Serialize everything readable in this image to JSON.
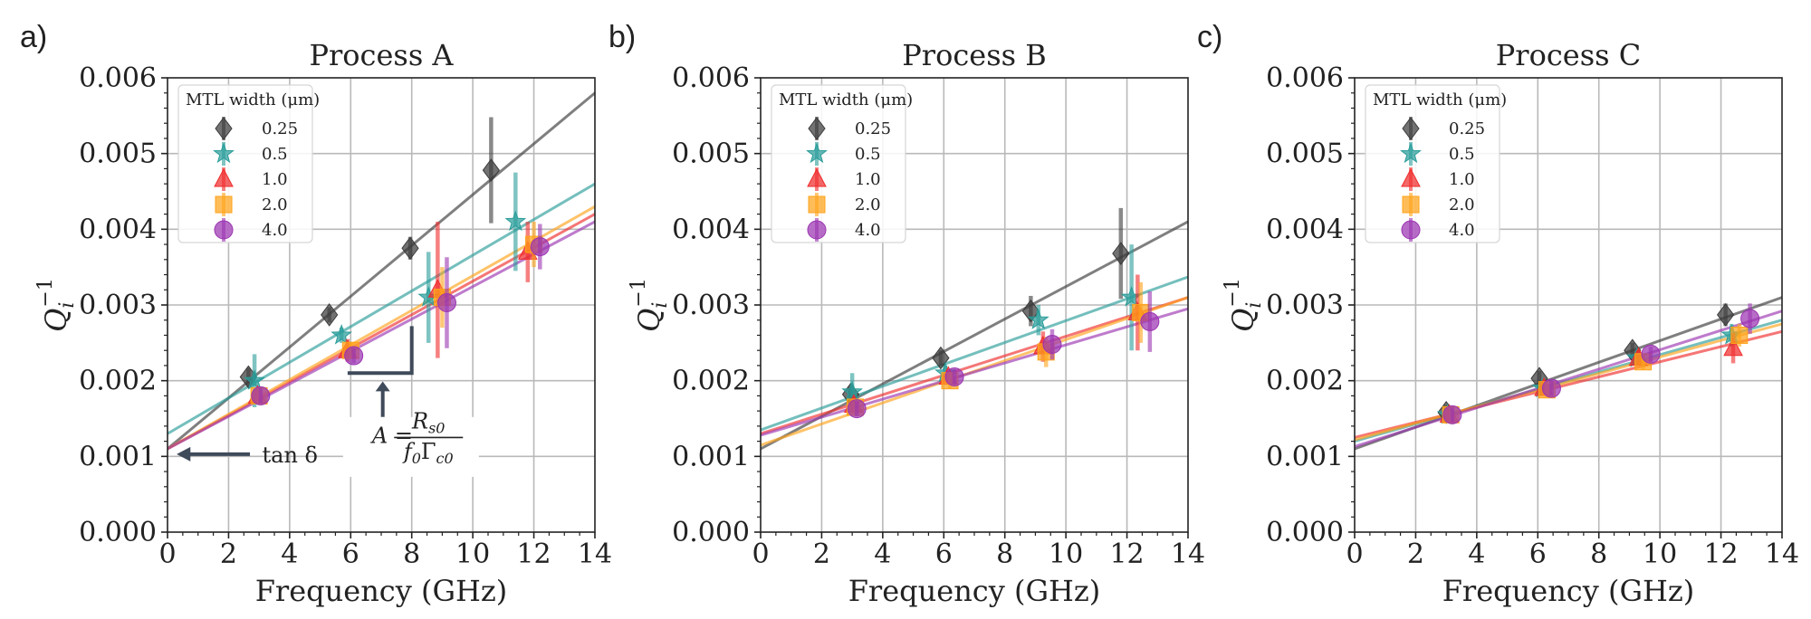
{
  "chart_data": [
    {
      "type": "scatter",
      "panel_label": "a)",
      "title": "Process A",
      "xlabel": "Frequency (GHz)",
      "ylabel": "Q_i^-1",
      "xlim": [
        0,
        14
      ],
      "ylim": [
        0,
        0.006
      ],
      "xticks": [
        "0",
        "2",
        "4",
        "6",
        "8",
        "10",
        "12",
        "14"
      ],
      "yticks": [
        "0.000",
        "0.001",
        "0.002",
        "0.003",
        "0.004",
        "0.005",
        "0.006"
      ],
      "grid": true,
      "legend_title": "MTL width (μm)",
      "legend_position": "top-left",
      "series": [
        {
          "name": "0.25",
          "color": "#3b3b3b",
          "marker": "diamond",
          "x": [
            2.65,
            5.3,
            7.95,
            10.6
          ],
          "y": [
            0.00205,
            0.00287,
            0.00375,
            0.00478
          ],
          "yerr": [
            0.00012,
            0.0001,
            0.00015,
            0.0007
          ],
          "fit": [
            0.0011,
            0.0058
          ]
        },
        {
          "name": "0.5",
          "color": "#2a9d9a",
          "marker": "star",
          "x": [
            2.85,
            5.7,
            8.55,
            11.4
          ],
          "y": [
            0.002,
            0.0026,
            0.0031,
            0.0041
          ],
          "yerr": [
            0.00035,
            0.0001,
            0.0006,
            0.00065
          ],
          "fit": [
            0.0013,
            0.0046
          ]
        },
        {
          "name": "1.0",
          "color": "#f02c2c",
          "marker": "triangle",
          "x": [
            2.95,
            5.9,
            8.85,
            11.8
          ],
          "y": [
            0.0018,
            0.0024,
            0.0032,
            0.0037
          ],
          "yerr": [
            0.0001,
            0.00015,
            0.0009,
            0.0004
          ],
          "fit": [
            0.0011,
            0.0042
          ]
        },
        {
          "name": "2.0",
          "color": "#ffa31a",
          "marker": "square",
          "x": [
            3.0,
            6.0,
            9.0,
            12.0
          ],
          "y": [
            0.0018,
            0.0024,
            0.0031,
            0.0038
          ],
          "yerr": [
            0.0001,
            0.0001,
            0.0004,
            0.0003
          ],
          "fit": [
            0.0011,
            0.0043
          ]
        },
        {
          "name": "4.0",
          "color": "#9b34b1",
          "marker": "circle",
          "x": [
            3.05,
            6.1,
            9.15,
            12.2
          ],
          "y": [
            0.0018,
            0.00233,
            0.00303,
            0.00377
          ],
          "yerr": [
            0.0001,
            0.0001,
            0.0006,
            0.0003
          ],
          "fit": [
            0.0011,
            0.0041
          ]
        }
      ],
      "annotations": {
        "tan_delta": "tan δ",
        "slope_A": "A =",
        "slope_num": "R",
        "slope_num_sub": "s0",
        "slope_den": "f",
        "slope_den_sub1": "0",
        "slope_den_mid": "Γ",
        "slope_den_sub2": "c0"
      }
    },
    {
      "type": "scatter",
      "panel_label": "b)",
      "title": "Process B",
      "xlabel": "Frequency (GHz)",
      "ylabel": "Q_i^-1",
      "xlim": [
        0,
        14
      ],
      "ylim": [
        0,
        0.006
      ],
      "xticks": [
        "0",
        "2",
        "4",
        "6",
        "8",
        "10",
        "12",
        "14"
      ],
      "yticks": [
        "0.000",
        "0.001",
        "0.002",
        "0.003",
        "0.004",
        "0.005",
        "0.006"
      ],
      "grid": true,
      "legend_title": "MTL width (μm)",
      "legend_position": "top-left",
      "series": [
        {
          "name": "0.25",
          "color": "#3b3b3b",
          "marker": "diamond",
          "x": [
            2.95,
            5.9,
            8.85,
            11.8
          ],
          "y": [
            0.00182,
            0.0023,
            0.00292,
            0.00368
          ],
          "yerr": [
            0.0001,
            0.0001,
            0.0002,
            0.0006
          ],
          "fit": [
            0.0011,
            0.0041
          ]
        },
        {
          "name": "0.5",
          "color": "#2a9d9a",
          "marker": "star",
          "x": [
            3.0,
            6.05,
            9.1,
            12.15
          ],
          "y": [
            0.00185,
            0.0021,
            0.0028,
            0.0031
          ],
          "yerr": [
            0.00025,
            0.0001,
            0.0002,
            0.0007
          ],
          "fit": [
            0.00135,
            0.00337
          ]
        },
        {
          "name": "1.0",
          "color": "#f02c2c",
          "marker": "triangle",
          "x": [
            3.05,
            6.15,
            9.25,
            12.35
          ],
          "y": [
            0.00168,
            0.00205,
            0.00245,
            0.0029
          ],
          "yerr": [
            0.0001,
            0.0001,
            0.0002,
            0.0005
          ],
          "fit": [
            0.0013,
            0.0031
          ]
        },
        {
          "name": "2.0",
          "color": "#ffa31a",
          "marker": "square",
          "x": [
            3.1,
            6.2,
            9.35,
            12.45
          ],
          "y": [
            0.00165,
            0.002,
            0.00238,
            0.0029
          ],
          "yerr": [
            0.0001,
            0.0001,
            0.0002,
            0.0004
          ],
          "fit": [
            0.00115,
            0.0031
          ]
        },
        {
          "name": "4.0",
          "color": "#9b34b1",
          "marker": "circle",
          "x": [
            3.15,
            6.35,
            9.55,
            12.75
          ],
          "y": [
            0.00163,
            0.00205,
            0.00248,
            0.00278
          ],
          "yerr": [
            0.0001,
            0.0001,
            0.0002,
            0.0004
          ],
          "fit": [
            0.00128,
            0.00295
          ]
        }
      ]
    },
    {
      "type": "scatter",
      "panel_label": "c)",
      "title": "Process C",
      "xlabel": "Frequency (GHz)",
      "ylabel": "Q_i^-1",
      "xlim": [
        0,
        14
      ],
      "ylim": [
        0,
        0.006
      ],
      "xticks": [
        "0",
        "2",
        "4",
        "6",
        "8",
        "10",
        "12",
        "14"
      ],
      "yticks": [
        "0.000",
        "0.001",
        "0.002",
        "0.003",
        "0.004",
        "0.005",
        "0.006"
      ],
      "grid": true,
      "legend_title": "MTL width (μm)",
      "legend_position": "top-left",
      "series": [
        {
          "name": "0.25",
          "color": "#3b3b3b",
          "marker": "diamond",
          "x": [
            3.0,
            6.05,
            9.1,
            12.15
          ],
          "y": [
            0.00158,
            0.00203,
            0.0024,
            0.00287
          ],
          "yerr": [
            0.0001,
            0.0001,
            0.0001,
            0.00015
          ],
          "fit": [
            0.0011,
            0.0031
          ]
        },
        {
          "name": "0.5",
          "color": "#2a9d9a",
          "marker": "star",
          "x": [
            3.05,
            6.15,
            9.25,
            12.35
          ],
          "y": [
            0.00155,
            0.0019,
            0.0023,
            0.0026
          ],
          "yerr": [
            0.0001,
            0.0001,
            0.0001,
            0.00015
          ],
          "fit": [
            0.0012,
            0.0028
          ]
        },
        {
          "name": "1.0",
          "color": "#f02c2c",
          "marker": "triangle",
          "x": [
            3.1,
            6.2,
            9.3,
            12.4
          ],
          "y": [
            0.00155,
            0.0019,
            0.0023,
            0.00243
          ],
          "yerr": [
            0.0001,
            0.0001,
            0.0001,
            0.0002
          ],
          "fit": [
            0.00125,
            0.00265
          ]
        },
        {
          "name": "2.0",
          "color": "#ffa31a",
          "marker": "square",
          "x": [
            3.15,
            6.3,
            9.45,
            12.6
          ],
          "y": [
            0.00155,
            0.00188,
            0.00225,
            0.0026
          ],
          "yerr": [
            0.0001,
            0.0001,
            0.0001,
            0.00015
          ],
          "fit": [
            0.00122,
            0.00275
          ]
        },
        {
          "name": "4.0",
          "color": "#9b34b1",
          "marker": "circle",
          "x": [
            3.2,
            6.45,
            9.7,
            12.95
          ],
          "y": [
            0.00155,
            0.0019,
            0.00235,
            0.00282
          ],
          "yerr": [
            0.0001,
            0.0001,
            0.0001,
            0.0002
          ],
          "fit": [
            0.00113,
            0.00292
          ]
        }
      ]
    }
  ]
}
